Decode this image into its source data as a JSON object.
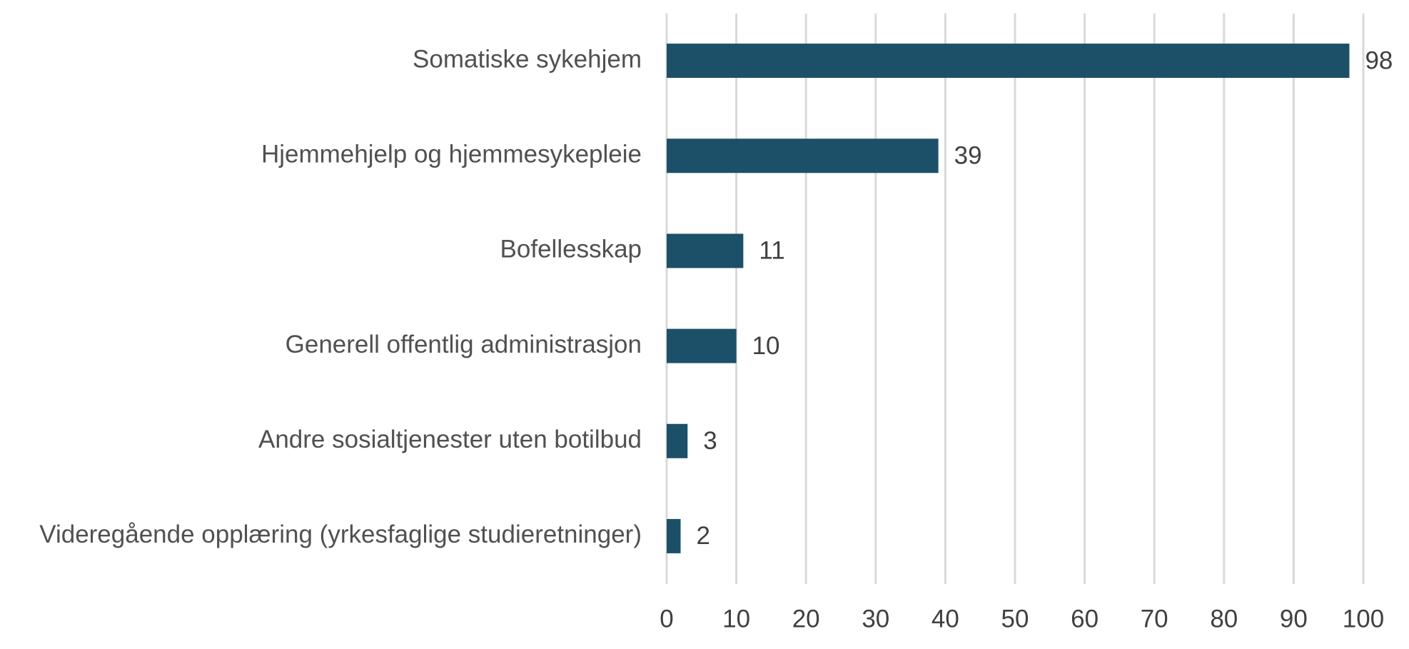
{
  "chart_data": {
    "type": "hbar",
    "categories": [
      "Somatiske sykehjem",
      "Hjemmehjelp og hjemmesykepleie",
      "Bofellesskap",
      "Generell offentlig administrasjon",
      "Andre sosialtjenester uten botilbud",
      "Videregående opplæring (yrkesfaglige studieretninger)"
    ],
    "values": [
      98,
      39,
      11,
      10,
      3,
      2
    ],
    "color": "#1b5068",
    "xlim": [
      0,
      100
    ],
    "xticks": [
      0,
      10,
      20,
      30,
      40,
      50,
      60,
      70,
      80,
      90,
      100
    ],
    "grid": true
  }
}
